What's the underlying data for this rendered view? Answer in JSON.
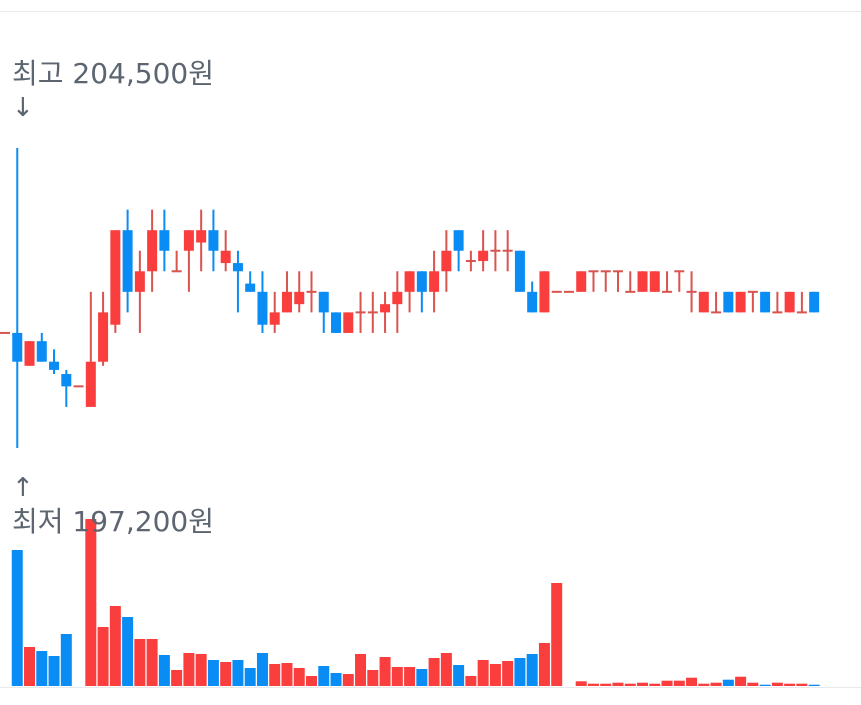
{
  "chart_data": {
    "type": "candlestick",
    "high_label": "최고 204,500원",
    "high_arrow": "↓",
    "low_label": "최저 197,200원",
    "low_arrow": "↑",
    "price_range": [
      197200,
      204500
    ],
    "colors": {
      "up": "#fa3e3e",
      "down": "#0a8cf5",
      "doji": "#d9534f"
    },
    "ohlc": [
      [
        200000,
        200000,
        200000,
        200000
      ],
      [
        200000,
        204500,
        197200,
        199300
      ],
      [
        199200,
        199800,
        199200,
        199800
      ],
      [
        199800,
        200000,
        199300,
        199300
      ],
      [
        199300,
        199600,
        199000,
        199100
      ],
      [
        199000,
        199100,
        198200,
        198700
      ],
      [
        198700,
        198700,
        198700,
        198700
      ],
      [
        198200,
        201000,
        198200,
        199300
      ],
      [
        199300,
        201000,
        199200,
        200500
      ],
      [
        200200,
        202500,
        200000,
        202500
      ],
      [
        202500,
        203000,
        200500,
        201000
      ],
      [
        201000,
        202000,
        200000,
        201500
      ],
      [
        201500,
        203000,
        201000,
        202500
      ],
      [
        202500,
        203000,
        201500,
        202000
      ],
      [
        201500,
        202000,
        201500,
        201500
      ],
      [
        202000,
        202500,
        201000,
        202500
      ],
      [
        202200,
        203000,
        201500,
        202500
      ],
      [
        202500,
        203000,
        201500,
        202000
      ],
      [
        201700,
        202500,
        201500,
        202000
      ],
      [
        201700,
        202000,
        200500,
        201500
      ],
      [
        201200,
        201500,
        201000,
        201000
      ],
      [
        201000,
        201500,
        200000,
        200200
      ],
      [
        200200,
        201000,
        200000,
        200500
      ],
      [
        200500,
        201500,
        200500,
        201000
      ],
      [
        200700,
        201500,
        200500,
        201000
      ],
      [
        201000,
        201500,
        200500,
        201000
      ],
      [
        201000,
        201000,
        200000,
        200500
      ],
      [
        200500,
        200500,
        200000,
        200000
      ],
      [
        200000,
        200500,
        200000,
        200500
      ],
      [
        200500,
        201000,
        200000,
        200500
      ],
      [
        200500,
        201000,
        200000,
        200500
      ],
      [
        200500,
        201000,
        200000,
        200700
      ],
      [
        200700,
        201500,
        200000,
        201000
      ],
      [
        201000,
        201500,
        200500,
        201500
      ],
      [
        201500,
        201500,
        200500,
        201000
      ],
      [
        201000,
        202000,
        200500,
        201500
      ],
      [
        201500,
        202500,
        201000,
        202000
      ],
      [
        202500,
        202500,
        201500,
        202000
      ],
      [
        201750,
        202000,
        201500,
        201750
      ],
      [
        201750,
        202500,
        201500,
        202000
      ],
      [
        202000,
        202500,
        201500,
        202000
      ],
      [
        202000,
        202500,
        201500,
        202000
      ],
      [
        202000,
        202000,
        201000,
        201000
      ],
      [
        201000,
        201250,
        200500,
        200500
      ],
      [
        200500,
        201500,
        200500,
        201500
      ],
      [
        201000,
        201000,
        201000,
        201000
      ],
      [
        201000,
        201000,
        201000,
        201000
      ],
      [
        201000,
        201500,
        201000,
        201500
      ],
      [
        201500,
        201500,
        201000,
        201500
      ],
      [
        201500,
        201500,
        201000,
        201500
      ],
      [
        201500,
        201500,
        201000,
        201500
      ],
      [
        201000,
        201500,
        201000,
        201000
      ],
      [
        201000,
        201500,
        201000,
        201500
      ],
      [
        201000,
        201500,
        201000,
        201500
      ],
      [
        201000,
        201500,
        201000,
        201000
      ],
      [
        201500,
        201500,
        201000,
        201500
      ],
      [
        201000,
        201500,
        200500,
        201000
      ],
      [
        200500,
        201000,
        200500,
        201000
      ],
      [
        200500,
        201000,
        200500,
        200500
      ],
      [
        201000,
        201000,
        200500,
        200500
      ],
      [
        200500,
        201000,
        200500,
        201000
      ],
      [
        201000,
        201000,
        200500,
        201000
      ],
      [
        201000,
        201000,
        200500,
        200500
      ],
      [
        200500,
        201000,
        200500,
        200500
      ],
      [
        200500,
        201000,
        200500,
        201000
      ],
      [
        200500,
        201000,
        200500,
        200500
      ],
      [
        201000,
        201000,
        200500,
        200500
      ]
    ],
    "volume_relative": [
      0,
      136,
      39,
      35,
      30,
      52,
      0,
      167,
      59,
      80,
      69,
      47,
      47,
      31,
      16,
      33,
      32,
      26,
      24,
      26,
      18,
      33,
      22,
      23,
      18,
      10,
      20,
      13,
      12,
      32,
      16,
      29,
      19,
      19,
      17,
      28,
      33,
      21,
      10,
      26,
      22,
      25,
      28,
      32,
      43,
      103,
      0,
      4.7,
      2.3,
      2.3,
      3.3,
      2.3,
      3.3,
      2.3,
      5.3,
      5.3,
      8.3,
      2.3,
      3.3,
      6.3,
      9.3,
      3.3,
      1.3,
      3.3,
      2.3,
      2.3,
      1.3
    ]
  }
}
